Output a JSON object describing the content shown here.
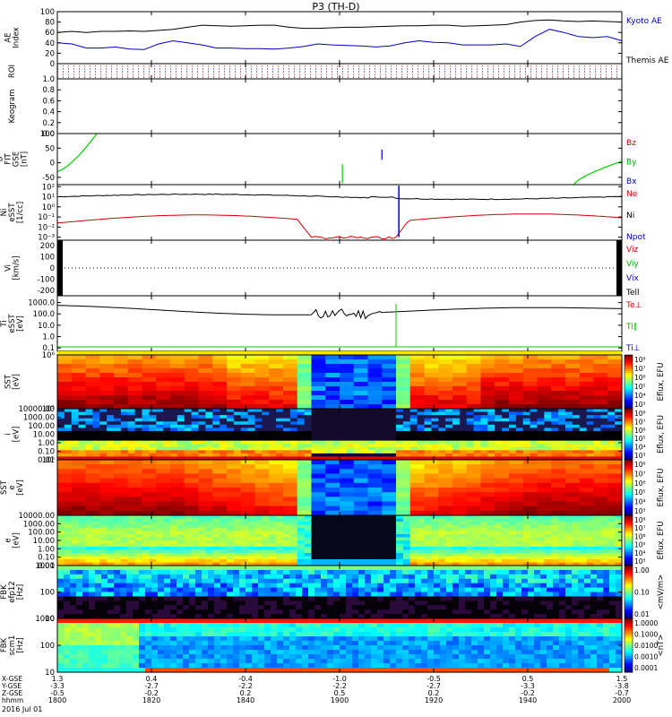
{
  "chart_data": {
    "type": "line",
    "title": "P3 (TH-D)",
    "date_label": "2016 Jul 01",
    "x_axis": {
      "rows": [
        {
          "label": "X-GSE",
          "values": [
            "1.3",
            "0.4",
            "-0.4",
            "-1.0",
            "-0.5",
            "0.5",
            "1.5"
          ]
        },
        {
          "label": "Y-GSE",
          "values": [
            "-3.3",
            "-2.7",
            "-2.2",
            "-2.2",
            "-2.7",
            "-3.3",
            "-3.8"
          ]
        },
        {
          "label": "Z-GSE",
          "values": [
            "-0.5",
            "-0.2",
            "0.2",
            "0.5",
            "0.2",
            "-0.2",
            "-0.7"
          ]
        },
        {
          "label": "hhmm",
          "values": [
            "1800",
            "1820",
            "1840",
            "1900",
            "1920",
            "1940",
            "2000"
          ]
        }
      ]
    },
    "panels": [
      {
        "id": "ae",
        "ylabel": "AE Index",
        "yticks": [
          "100",
          "80",
          "60",
          "40",
          "20",
          "0"
        ],
        "legend": [
          {
            "text": "Kyoto AE",
            "color": "#0000c8"
          },
          {
            "text": "Themis AE",
            "color": "#000000"
          }
        ],
        "series": [
          {
            "name": "Kyoto AE",
            "color": "#0000c8",
            "y": [
              40,
              38,
              30,
              30,
              32,
              28,
              27,
              38,
              44,
              40,
              36,
              30,
              30,
              29,
              29,
              28,
              30,
              33,
              38,
              36,
              35,
              34,
              32,
              34,
              40,
              44,
              41,
              40,
              36,
              36,
              36,
              38,
              33,
              52,
              66,
              60,
              52,
              50,
              52,
              44
            ]
          },
          {
            "name": "Themis AE",
            "color": "#000000",
            "y": [
              60,
              62,
              60,
              62,
              62,
              63,
              62,
              64,
              66,
              70,
              74,
              73,
              72,
              73,
              74,
              74,
              70,
              68,
              68,
              69,
              70,
              70,
              71,
              72,
              73,
              73,
              74,
              74,
              72,
              73,
              74,
              75,
              80,
              83,
              84,
              82,
              81,
              82,
              81,
              80
            ]
          }
        ]
      },
      {
        "id": "roi",
        "ylabel": "ROI"
      },
      {
        "id": "keogram",
        "ylabel": "Keogram",
        "yticks": [
          "1.0",
          "0.8",
          "0.6",
          "0.4",
          "0.2",
          "0.0"
        ]
      },
      {
        "id": "bfit",
        "ylabel": "B FIT GSE [nT]",
        "yticks": [
          "100",
          "50",
          "0",
          "-50"
        ],
        "legend": [
          {
            "text": "Bz",
            "color": "#d00000"
          },
          {
            "text": "By",
            "color": "#00b000"
          },
          {
            "text": "Bx",
            "color": "#0000c8"
          }
        ]
      },
      {
        "id": "ni",
        "ylabel": "Ni eSST [1/cc]",
        "yticks": [
          "10²",
          "10¹",
          "10⁰",
          "10⁻¹",
          "10⁻²",
          "10⁻³"
        ],
        "legend": [
          {
            "text": "Ne",
            "color": "#d00000"
          },
          {
            "text": "Ni",
            "color": "#000000"
          },
          {
            "text": "Npot",
            "color": "#0000c8"
          }
        ]
      },
      {
        "id": "vi",
        "ylabel": "Vi [km/s]",
        "yticks": [
          "200",
          "100",
          "0",
          "-100",
          "-200"
        ],
        "legend": [
          {
            "text": "Viz",
            "color": "#d00000"
          },
          {
            "text": "Viy",
            "color": "#00b000"
          },
          {
            "text": "Vix",
            "color": "#0000c8"
          },
          {
            "text": "Tell",
            "color": "#000000"
          }
        ]
      },
      {
        "id": "ti",
        "ylabel": "Ti eSST [eV]",
        "yticks": [
          "1000.0",
          "100.0",
          "10.0",
          "1.0",
          "0.1"
        ],
        "legend": [
          {
            "text": "Te⊥",
            "color": "#d00000"
          },
          {
            "text": "Ti∥",
            "color": "#00b000"
          },
          {
            "text": "Ti⊥",
            "color": "#0000c8"
          }
        ]
      },
      {
        "id": "sst_i",
        "ylabel": "SST [eV]",
        "yticks": [
          "10⁶",
          "10⁵"
        ],
        "colorbar_label": "Eflux, EFU",
        "colorbar_ticks": [
          "10⁸",
          "10⁷",
          "10⁶",
          "10⁵",
          "10⁴",
          "10³"
        ]
      },
      {
        "id": "esa_i",
        "ylabel": "i [eV]",
        "yticks": [
          "10000.00",
          "1000.00",
          "100.00",
          "10.00",
          "1.00",
          "0.10",
          "0.01"
        ],
        "colorbar_label": "Eflux, EFU",
        "colorbar_ticks": [
          "10⁸",
          "10⁷",
          "10⁶",
          "10⁵",
          "10⁴",
          "10³"
        ]
      },
      {
        "id": "sst_e",
        "ylabel": "SST e [eV]",
        "yticks": [
          "10⁵"
        ],
        "colorbar_label": "Eflux, EFU",
        "colorbar_ticks": [
          "10⁸",
          "10⁷",
          "10⁶",
          "10⁵",
          "10⁴",
          "10³"
        ]
      },
      {
        "id": "esa_e",
        "ylabel": "e [eV]",
        "yticks": [
          "10000.00",
          "1000.00",
          "100.00",
          "10.00",
          "1.00",
          "0.10",
          "0.01"
        ],
        "colorbar_label": "Eflux, EFU",
        "colorbar_ticks": [
          "10⁸",
          "10⁷",
          "10⁶",
          "10⁵",
          "10⁴",
          "10³"
        ]
      },
      {
        "id": "fbk_e",
        "ylabel": "FBK efp12 [Hz]",
        "yticks": [
          "1000",
          "100",
          "10"
        ],
        "colorbar_label": "<mV/m>",
        "colorbar_ticks": [
          "1.00",
          "0.10",
          "0.01"
        ]
      },
      {
        "id": "fbk_b",
        "ylabel": "FBK scm1 [Hz]",
        "yticks": [
          "1000",
          "100",
          "10"
        ],
        "colorbar_label": "<nT>",
        "colorbar_ticks": [
          "1.0000",
          "0.1000",
          "0.0100",
          "0.0010",
          "0.0001"
        ]
      }
    ]
  }
}
